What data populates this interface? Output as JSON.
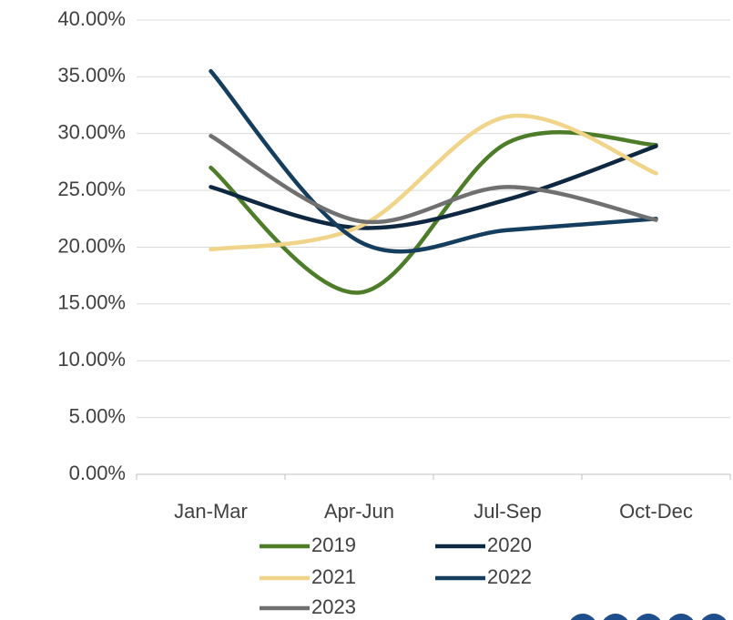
{
  "chart_data": {
    "type": "line",
    "smooth": true,
    "categories": [
      "Jan-Mar",
      "Apr-Jun",
      "Jul-Sep",
      "Oct-Dec"
    ],
    "series": [
      {
        "name": "2019",
        "color": "#4e7d2a",
        "values": [
          27.0,
          16.0,
          29.2,
          29.0
        ]
      },
      {
        "name": "2020",
        "color": "#0e2841",
        "values": [
          25.3,
          21.7,
          24.2,
          28.9
        ]
      },
      {
        "name": "2021",
        "color": "#f0d48a",
        "values": [
          19.8,
          21.8,
          31.5,
          26.5
        ]
      },
      {
        "name": "2022",
        "color": "#153d5e",
        "values": [
          35.5,
          20.5,
          21.5,
          22.5
        ]
      },
      {
        "name": "2023",
        "color": "#707070",
        "values": [
          29.8,
          22.3,
          25.3,
          22.4
        ]
      }
    ],
    "ylim": [
      0,
      40
    ],
    "yticks": [
      {
        "value": 0,
        "label": "0.00%"
      },
      {
        "value": 5,
        "label": "5.00%"
      },
      {
        "value": 10,
        "label": "10.00%"
      },
      {
        "value": 15,
        "label": "15.00%"
      },
      {
        "value": 20,
        "label": "20.00%"
      },
      {
        "value": 25,
        "label": "25.00%"
      },
      {
        "value": 30,
        "label": "30.00%"
      },
      {
        "value": 35,
        "label": "35.00%"
      },
      {
        "value": 40,
        "label": "40.00%"
      }
    ],
    "grid": true,
    "legend": "bottom"
  }
}
